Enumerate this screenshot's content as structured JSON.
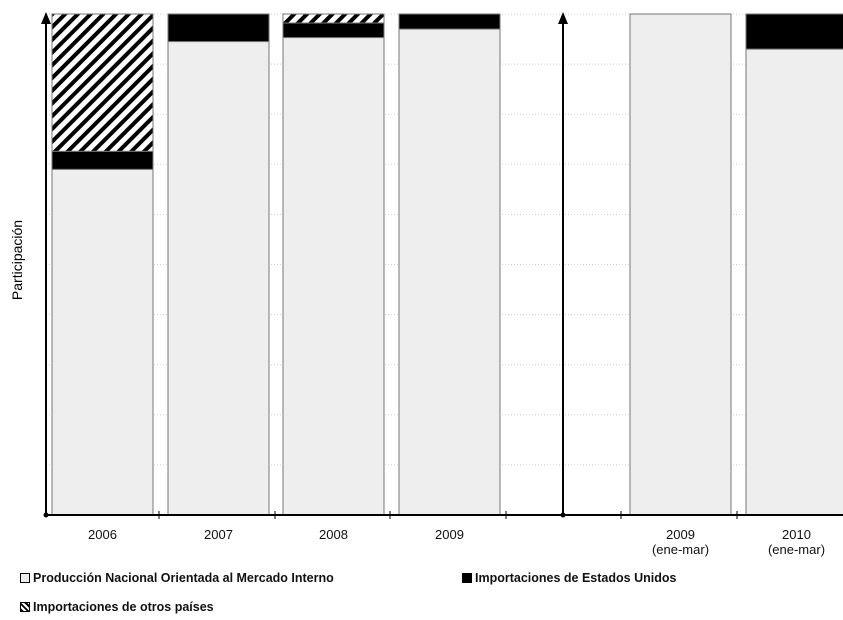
{
  "chart_data": {
    "type": "bar",
    "stacked": true,
    "ylabel": "Participación",
    "ylim": [
      0,
      100
    ],
    "grid": true,
    "legend_position": "bottom",
    "categories": [
      {
        "line1": "2006",
        "line2": ""
      },
      {
        "line1": "2007",
        "line2": ""
      },
      {
        "line1": "2008",
        "line2": ""
      },
      {
        "line1": "2009",
        "line2": ""
      },
      {
        "line1": "2009",
        "line2": "(ene-mar)"
      },
      {
        "line1": "2010",
        "line2": "(ene-mar)"
      }
    ],
    "series": [
      {
        "name": "Producción Nacional Orientada al Mercado Interno",
        "color": "#eeeeee",
        "pattern": "solid",
        "values": [
          69,
          94.5,
          95.3,
          97,
          100,
          93
        ]
      },
      {
        "name": "Importaciones de Estados Unidos",
        "color": "#000000",
        "pattern": "solid",
        "values": [
          3.6,
          5.5,
          2.9,
          3,
          0,
          7
        ]
      },
      {
        "name": "Importaciones de otros países",
        "color": "#000000",
        "pattern": "hatch",
        "values": [
          27.4,
          0,
          1.8,
          0,
          0,
          0
        ]
      }
    ]
  }
}
